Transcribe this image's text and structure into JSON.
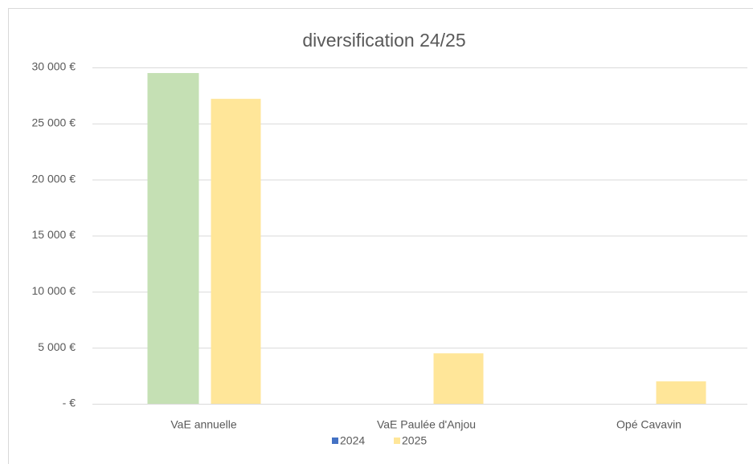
{
  "chart_data": {
    "type": "bar",
    "title": "diversification 24/25",
    "categories": [
      "VaE annuelle",
      "VaE Paulée d'Anjou",
      "Opé Cavavin"
    ],
    "series": [
      {
        "name": "2024",
        "color": "#4472c4",
        "bar_color": "#c5e0b4",
        "values": [
          29500,
          null,
          null
        ]
      },
      {
        "name": "2025",
        "color": "#ffe699",
        "values": [
          27200,
          4500,
          2000
        ]
      }
    ],
    "ylim": [
      0,
      30000
    ],
    "yticks": [
      {
        "value": 0,
        "label": "-  €"
      },
      {
        "value": 5000,
        "label": "5 000 €"
      },
      {
        "value": 10000,
        "label": "10 000 €"
      },
      {
        "value": 15000,
        "label": "15 000 €"
      },
      {
        "value": 20000,
        "label": "20 000 €"
      },
      {
        "value": 25000,
        "label": "25 000 €"
      },
      {
        "value": 30000,
        "label": "30 000 €"
      }
    ],
    "grid": true,
    "legend": "bottom"
  }
}
